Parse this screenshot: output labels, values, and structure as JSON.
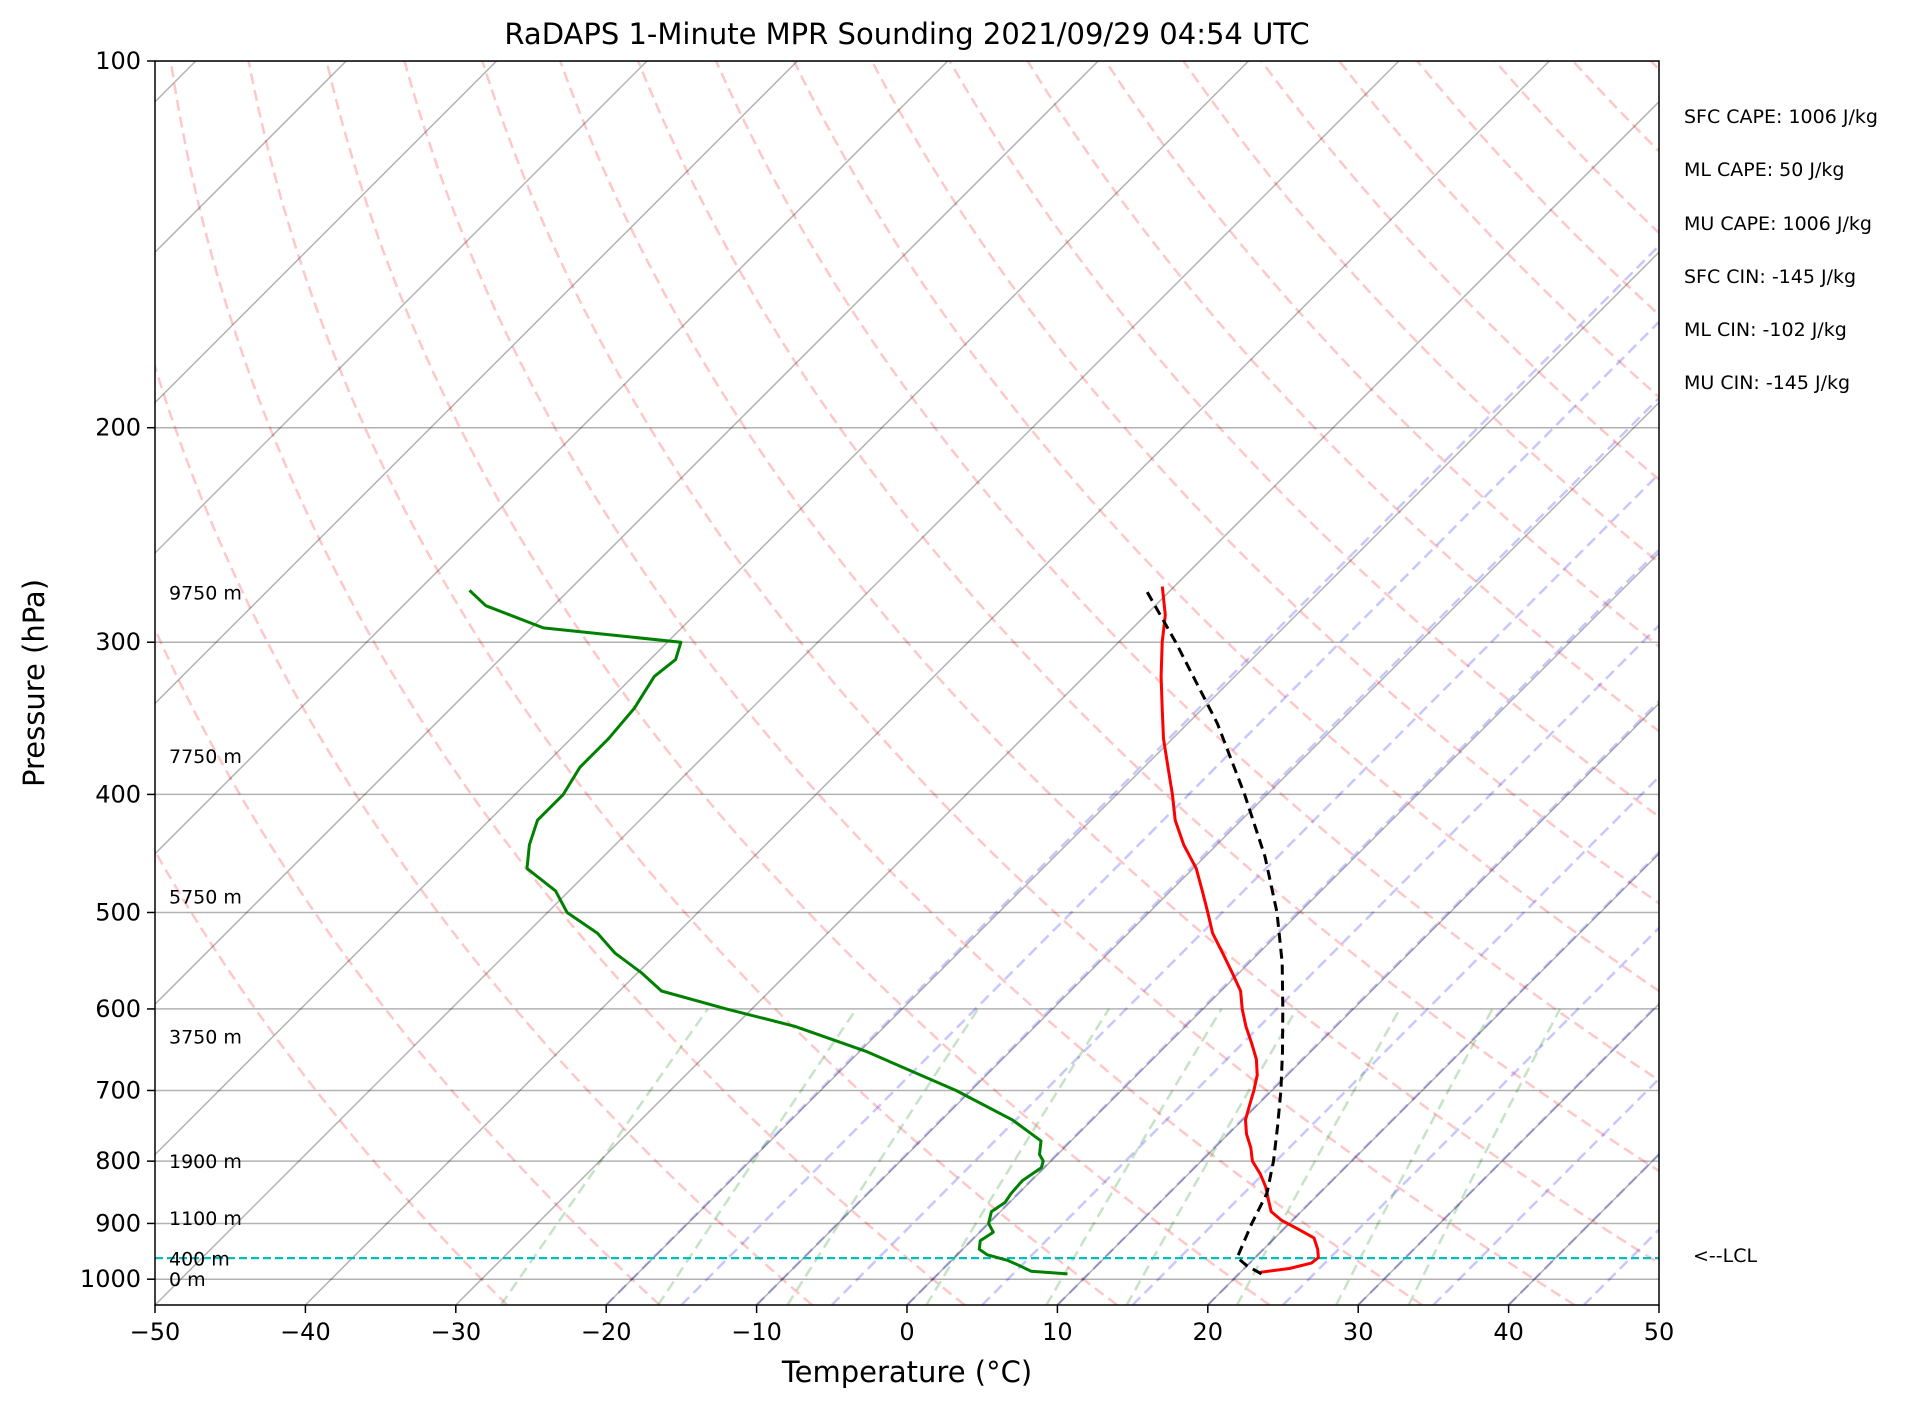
{
  "chart_data": {
    "type": "line",
    "title": "RaDAPS 1-Minute MPR Sounding 2021/09/29 04:54 UTC",
    "xlabel": "Temperature (°C)",
    "ylabel": "Pressure (hPa)",
    "xlim": [
      -50,
      50
    ],
    "ylim": [
      1050,
      100
    ],
    "yscale": "log",
    "skew": "skew-T log-p (45°)",
    "xticks": [
      -50,
      -40,
      -30,
      -20,
      -10,
      0,
      10,
      20,
      30,
      40,
      50
    ],
    "yticks": [
      100,
      200,
      300,
      400,
      500,
      600,
      700,
      800,
      900,
      1000
    ],
    "grid": true,
    "height_labels": [
      {
        "text": "0 m",
        "p": 1000
      },
      {
        "text": "400 m",
        "p": 962
      },
      {
        "text": "1100 m",
        "p": 891
      },
      {
        "text": "1900 m",
        "p": 800
      },
      {
        "text": "3750 m",
        "p": 632
      },
      {
        "text": "5750 m",
        "p": 485
      },
      {
        "text": "7750 m",
        "p": 372
      },
      {
        "text": "9750 m",
        "p": 273
      }
    ],
    "lcl": {
      "label": "<--LCL",
      "p": 961
    },
    "series": [
      {
        "color": "#ff0000",
        "points": [
          [
            987,
            21.3
          ],
          [
            980,
            23.0
          ],
          [
            970,
            24.1
          ],
          [
            960,
            24.2
          ],
          [
            945,
            23.6
          ],
          [
            925,
            22.6
          ],
          [
            910,
            21.0
          ],
          [
            895,
            19.3
          ],
          [
            880,
            18.0
          ],
          [
            860,
            17.0
          ],
          [
            840,
            16.0
          ],
          [
            820,
            14.8
          ],
          [
            800,
            13.4
          ],
          [
            780,
            12.4
          ],
          [
            760,
            11.2
          ],
          [
            740,
            10.2
          ],
          [
            720,
            9.5
          ],
          [
            700,
            8.8
          ],
          [
            680,
            8.0
          ],
          [
            660,
            6.9
          ],
          [
            640,
            5.5
          ],
          [
            620,
            4.0
          ],
          [
            600,
            2.6
          ],
          [
            580,
            1.3
          ],
          [
            560,
            -0.5
          ],
          [
            540,
            -2.4
          ],
          [
            520,
            -4.4
          ],
          [
            500,
            -6.1
          ],
          [
            480,
            -7.9
          ],
          [
            460,
            -9.8
          ],
          [
            440,
            -12.2
          ],
          [
            420,
            -14.4
          ],
          [
            400,
            -16.3
          ],
          [
            380,
            -18.4
          ],
          [
            360,
            -20.6
          ],
          [
            340,
            -22.7
          ],
          [
            320,
            -24.9
          ],
          [
            300,
            -27.1
          ],
          [
            285,
            -28.7
          ],
          [
            270,
            -30.8
          ]
        ]
      },
      {
        "color": "#008000",
        "points": [
          [
            990,
            8.6
          ],
          [
            985,
            6.0
          ],
          [
            975,
            4.9
          ],
          [
            965,
            3.7
          ],
          [
            955,
            2.0
          ],
          [
            945,
            1.1
          ],
          [
            930,
            0.6
          ],
          [
            915,
            0.9
          ],
          [
            900,
            0.0
          ],
          [
            880,
            -0.6
          ],
          [
            865,
            -0.3
          ],
          [
            850,
            -0.5
          ],
          [
            830,
            -0.6
          ],
          [
            810,
            -0.2
          ],
          [
            800,
            -0.5
          ],
          [
            790,
            -1.2
          ],
          [
            770,
            -2.0
          ],
          [
            740,
            -5.3
          ],
          [
            700,
            -11.0
          ],
          [
            650,
            -19.6
          ],
          [
            620,
            -26.0
          ],
          [
            600,
            -31.7
          ],
          [
            580,
            -37.2
          ],
          [
            560,
            -39.8
          ],
          [
            540,
            -42.8
          ],
          [
            520,
            -45.3
          ],
          [
            500,
            -48.7
          ],
          [
            480,
            -50.9
          ],
          [
            460,
            -54.3
          ],
          [
            440,
            -55.7
          ],
          [
            420,
            -56.8
          ],
          [
            400,
            -56.8
          ],
          [
            380,
            -57.5
          ],
          [
            360,
            -57.5
          ],
          [
            340,
            -57.8
          ],
          [
            320,
            -58.6
          ],
          [
            310,
            -58.3
          ],
          [
            300,
            -59.1
          ],
          [
            292,
            -69.2
          ],
          [
            280,
            -74.5
          ],
          [
            272,
            -76.6
          ]
        ]
      },
      {
        "color": "#000000",
        "style": "dashed",
        "points": [
          [
            990,
            21.5
          ],
          [
            975,
            20.0
          ],
          [
            960,
            18.8
          ],
          [
            900,
            17.5
          ],
          [
            850,
            16.5
          ],
          [
            800,
            14.8
          ],
          [
            750,
            12.8
          ],
          [
            700,
            10.6
          ],
          [
            650,
            8.1
          ],
          [
            600,
            5.3
          ],
          [
            550,
            2.2
          ],
          [
            500,
            -1.5
          ],
          [
            450,
            -6.0
          ],
          [
            400,
            -11.5
          ],
          [
            350,
            -18.0
          ],
          [
            300,
            -26.2
          ],
          [
            272,
            -31.6
          ]
        ]
      }
    ]
  },
  "indices": [
    "SFC CAPE: 1006 J/kg",
    "ML CAPE: 50 J/kg",
    "MU CAPE: 1006 J/kg",
    "SFC CIN: -145 J/kg",
    "ML CIN: -102 J/kg",
    "MU CIN: -145 J/kg"
  ]
}
